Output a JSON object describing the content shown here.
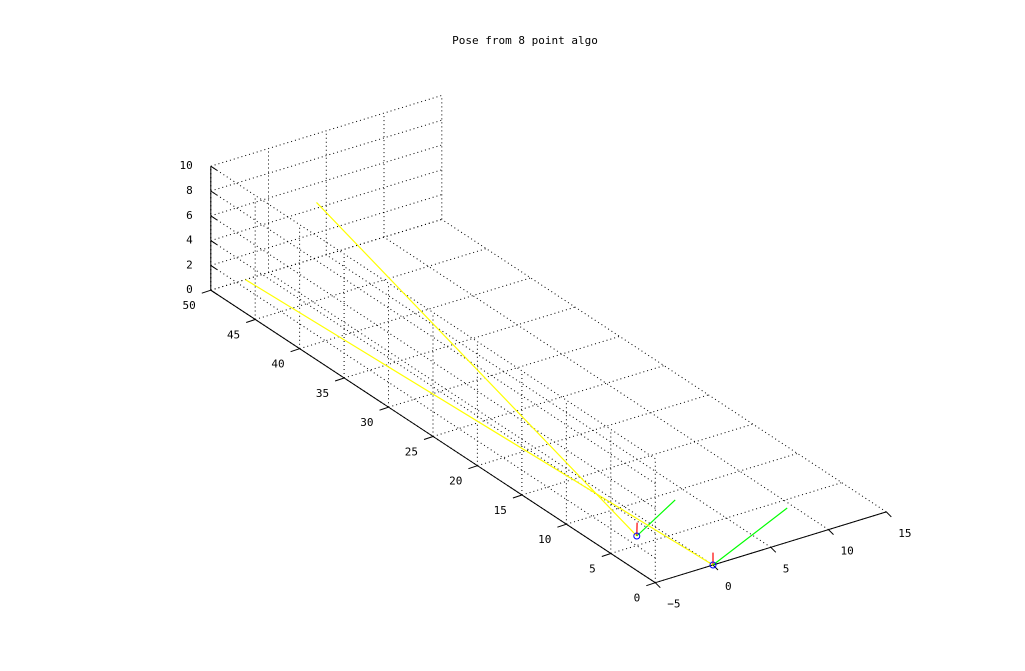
{
  "chart_data": {
    "type": "line",
    "title": "Pose from 8 point algo",
    "xlabel": "",
    "ylabel": "",
    "zlabel": "",
    "grid": true,
    "view": "3d",
    "xlim": [
      -5,
      15
    ],
    "ylim": [
      0,
      50
    ],
    "zlim": [
      0,
      10
    ],
    "x_ticks": [
      -5,
      0,
      5,
      10,
      15
    ],
    "y_ticks": [
      0,
      5,
      10,
      15,
      20,
      25,
      30,
      35,
      40,
      45,
      50
    ],
    "z_ticks": [
      0,
      2,
      4,
      6,
      8,
      10
    ],
    "x_tick_labels": [
      "−5",
      "0",
      "5",
      "10",
      "15"
    ],
    "y_tick_labels": [
      "0",
      "5",
      "10",
      "15",
      "20",
      "25",
      "30",
      "35",
      "40",
      "45",
      "50"
    ],
    "z_tick_labels": [
      "0",
      "2",
      "4",
      "6",
      "8",
      "10"
    ],
    "series": [
      {
        "name": "camera-1-yellow-z-axis",
        "color": "#ffff00",
        "points": [
          [
            -1.9,
            6.1,
            0
          ],
          [
            -2,
            42,
            10
          ]
        ]
      },
      {
        "name": "camera-1-red-y-axis",
        "color": "#ff0000",
        "points": [
          [
            -1.9,
            6.1,
            0
          ],
          [
            -1.8,
            6.2,
            1
          ]
        ]
      },
      {
        "name": "camera-1-green-x-axis",
        "color": "#00ff00",
        "points": [
          [
            -1.9,
            6.1,
            0
          ],
          [
            2.5,
            7.5,
            1
          ]
        ]
      },
      {
        "name": "camera-2-yellow-z-axis",
        "color": "#ffff00",
        "points": [
          [
            0,
            0,
            0
          ],
          [
            -2,
            50,
            0
          ]
        ]
      },
      {
        "name": "camera-2-red-y-axis",
        "color": "#ff0000",
        "points": [
          [
            0,
            0,
            0
          ],
          [
            0,
            0,
            1
          ]
        ]
      },
      {
        "name": "camera-2-green-x-axis",
        "color": "#00ff00",
        "points": [
          [
            0,
            0,
            0
          ],
          [
            9.5,
            4,
            0
          ]
        ]
      }
    ],
    "markers": [
      {
        "name": "camera-1-center",
        "point": [
          -1.9,
          6.1,
          0
        ],
        "color": "#0000ff",
        "shape": "circle"
      },
      {
        "name": "camera-2-center",
        "point": [
          0,
          0,
          0
        ],
        "color": "#0000ff",
        "shape": "circle"
      }
    ]
  }
}
